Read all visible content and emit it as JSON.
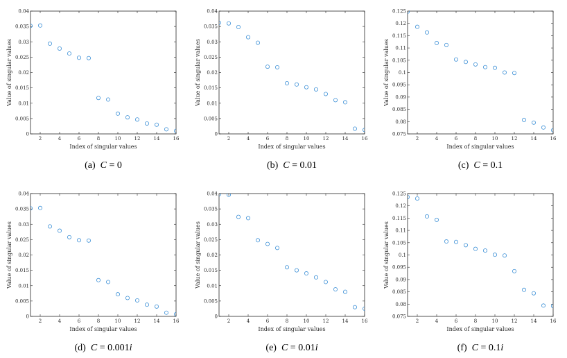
{
  "figure": {
    "accent_color": "#3b8fd6",
    "panels_order": [
      "a",
      "b",
      "c",
      "d",
      "e",
      "f"
    ]
  },
  "chart_data": [
    {
      "id": "a",
      "type": "scatter",
      "caption_prefix": "(a)",
      "caption_var": "C",
      "caption_rest": " = 0",
      "xlabel": "Index of singular values",
      "ylabel": "Value of singular values",
      "xlim": [
        1,
        16
      ],
      "ylim": [
        0,
        0.04
      ],
      "xticks": [
        2,
        4,
        6,
        8,
        10,
        12,
        14,
        16
      ],
      "yticks": [
        0,
        0.005,
        0.01,
        0.015,
        0.02,
        0.025,
        0.03,
        0.035,
        0.04
      ],
      "ytick_labels": [
        "0",
        "0.005",
        "0.01",
        "0.015",
        "0.02",
        "0.025",
        "0.03",
        "0.035",
        "0.04"
      ],
      "x": [
        1,
        2,
        3,
        4,
        5,
        6,
        7,
        8,
        9,
        10,
        11,
        12,
        13,
        14,
        15,
        16
      ],
      "y": [
        0.0352,
        0.0353,
        0.0294,
        0.0278,
        0.0262,
        0.0248,
        0.0247,
        0.0117,
        0.0112,
        0.0066,
        0.0054,
        0.0047,
        0.0034,
        0.003,
        0.0015,
        0.001
      ]
    },
    {
      "id": "b",
      "type": "scatter",
      "caption_prefix": "(b)",
      "caption_var": "C",
      "caption_rest": " = 0.01",
      "xlabel": "Index of singular values",
      "ylabel": "Value of singular values",
      "xlim": [
        1,
        16
      ],
      "ylim": [
        0,
        0.04
      ],
      "xticks": [
        2,
        4,
        6,
        8,
        10,
        12,
        14,
        16
      ],
      "yticks": [
        0,
        0.005,
        0.01,
        0.015,
        0.02,
        0.025,
        0.03,
        0.035,
        0.04
      ],
      "ytick_labels": [
        "0",
        "0.005",
        "0.01",
        "0.015",
        "0.02",
        "0.025",
        "0.03",
        "0.035",
        "0.04"
      ],
      "x": [
        1,
        2,
        3,
        4,
        5,
        6,
        7,
        8,
        9,
        10,
        11,
        12,
        13,
        14,
        15,
        16
      ],
      "y": [
        0.0362,
        0.036,
        0.0348,
        0.0315,
        0.0297,
        0.0219,
        0.0217,
        0.0165,
        0.0161,
        0.0152,
        0.0145,
        0.013,
        0.011,
        0.0103,
        0.0017,
        0.0013
      ]
    },
    {
      "id": "c",
      "type": "scatter",
      "caption_prefix": "(c)",
      "caption_var": "C",
      "caption_rest": " = 0.1",
      "xlabel": "Index of singular values",
      "ylabel": "Value of singular values",
      "xlim": [
        1,
        16
      ],
      "ylim": [
        0.075,
        0.125
      ],
      "xticks": [
        2,
        4,
        6,
        8,
        10,
        12,
        14,
        16
      ],
      "yticks": [
        0.075,
        0.08,
        0.085,
        0.09,
        0.095,
        0.1,
        0.105,
        0.11,
        0.115,
        0.12,
        0.125
      ],
      "ytick_labels": [
        "0.075",
        "0.08",
        "0.085",
        "0.09",
        "0.095",
        "0.1",
        "0.105",
        "0.11",
        "0.115",
        "0.12",
        "0.125"
      ],
      "x": [
        1,
        2,
        3,
        4,
        5,
        6,
        7,
        8,
        9,
        10,
        11,
        12,
        13,
        14,
        15,
        16
      ],
      "y": [
        0.1248,
        0.1186,
        0.1163,
        0.112,
        0.1112,
        0.1053,
        0.1043,
        0.1033,
        0.1022,
        0.1019,
        0.1,
        0.0998,
        0.0807,
        0.0796,
        0.0776,
        0.0765
      ]
    },
    {
      "id": "d",
      "type": "scatter",
      "caption_prefix": "(d)",
      "caption_var": "C",
      "caption_rest": " = 0.001",
      "caption_suffix_var": "i",
      "xlabel": "Index of singular values",
      "ylabel": "Value of singular values",
      "xlim": [
        1,
        16
      ],
      "ylim": [
        0,
        0.04
      ],
      "xticks": [
        2,
        4,
        6,
        8,
        10,
        12,
        14,
        16
      ],
      "yticks": [
        0,
        0.005,
        0.01,
        0.015,
        0.02,
        0.025,
        0.03,
        0.035,
        0.04
      ],
      "ytick_labels": [
        "0",
        "0.005",
        "0.01",
        "0.015",
        "0.02",
        "0.025",
        "0.03",
        "0.035",
        "0.04"
      ],
      "x": [
        1,
        2,
        3,
        4,
        5,
        6,
        7,
        8,
        9,
        10,
        11,
        12,
        13,
        14,
        15,
        16
      ],
      "y": [
        0.0352,
        0.0353,
        0.0293,
        0.0279,
        0.0258,
        0.0248,
        0.0247,
        0.0118,
        0.0112,
        0.0072,
        0.006,
        0.0052,
        0.0038,
        0.0032,
        0.0012,
        0.0007
      ]
    },
    {
      "id": "e",
      "type": "scatter",
      "caption_prefix": "(e)",
      "caption_var": "C",
      "caption_rest": " = 0.01",
      "caption_suffix_var": "i",
      "xlabel": "Index of singular values",
      "ylabel": "Value of singular values",
      "xlim": [
        1,
        16
      ],
      "ylim": [
        0,
        0.04
      ],
      "xticks": [
        2,
        4,
        6,
        8,
        10,
        12,
        14,
        16
      ],
      "yticks": [
        0,
        0.005,
        0.01,
        0.015,
        0.02,
        0.025,
        0.03,
        0.035,
        0.04
      ],
      "ytick_labels": [
        "0",
        "0.005",
        "0.01",
        "0.015",
        "0.02",
        "0.025",
        "0.03",
        "0.035",
        "0.04"
      ],
      "x": [
        1,
        2,
        3,
        4,
        5,
        6,
        7,
        8,
        9,
        10,
        11,
        12,
        13,
        14,
        15,
        16
      ],
      "y": [
        0.0398,
        0.0396,
        0.0324,
        0.032,
        0.0248,
        0.0236,
        0.0223,
        0.016,
        0.015,
        0.014,
        0.0127,
        0.0112,
        0.0088,
        0.008,
        0.003,
        0.0025
      ]
    },
    {
      "id": "f",
      "type": "scatter",
      "caption_prefix": "(f)",
      "caption_var": "C",
      "caption_rest": " = 0.1",
      "caption_suffix_var": "i",
      "xlabel": "Index of singular values",
      "ylabel": "Value of singular values",
      "xlim": [
        1,
        16
      ],
      "ylim": [
        0.075,
        0.125
      ],
      "xticks": [
        2,
        4,
        6,
        8,
        10,
        12,
        14,
        16
      ],
      "yticks": [
        0.075,
        0.08,
        0.085,
        0.09,
        0.095,
        0.1,
        0.105,
        0.11,
        0.115,
        0.12,
        0.125
      ],
      "ytick_labels": [
        "0.075",
        "0.08",
        "0.085",
        "0.09",
        "0.095",
        "0.1",
        "0.105",
        "0.11",
        "0.115",
        "0.12",
        "0.125"
      ],
      "x": [
        1,
        2,
        3,
        4,
        5,
        6,
        7,
        8,
        9,
        10,
        11,
        12,
        13,
        14,
        15,
        16
      ],
      "y": [
        0.1236,
        0.123,
        0.1157,
        0.1143,
        0.1055,
        0.1053,
        0.104,
        0.1025,
        0.1018,
        0.1001,
        0.0998,
        0.0934,
        0.0858,
        0.0844,
        0.0794,
        0.0792
      ]
    }
  ]
}
